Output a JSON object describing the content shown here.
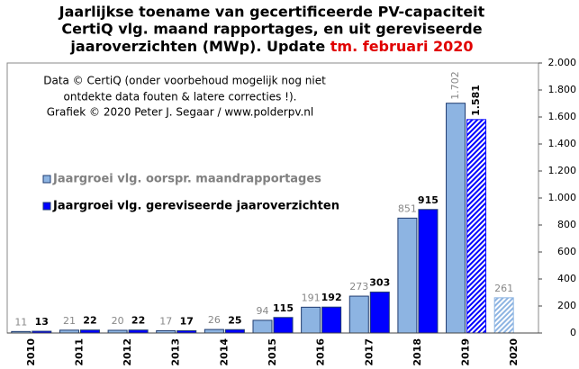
{
  "chart_data": {
    "type": "bar",
    "title": [
      "Jaarlijkse  toename van gecertificeerde PV-capaciteit",
      "CertiQ vlg. maand rapportages, en uit gereviseerde",
      "jaaroverzichten (MWp). Update"
    ],
    "title_highlight": "tm. februari 2020",
    "annotation": [
      "Data © CertiQ (onder voorbehoud mogelijk  nog niet",
      "ontdekte data fouten & latere correcties !).",
      "Grafiek  © 2020  Peter J. Segaar / www.polderpv.nl"
    ],
    "categories": [
      "2010",
      "2011",
      "2012",
      "2013",
      "2014",
      "2015",
      "2016",
      "2017",
      "2018",
      "2019",
      "2020"
    ],
    "series": [
      {
        "name": "Jaargroei vlg. oorspr. maandrapportages",
        "color": "#8db4e2",
        "values": [
          11,
          21,
          20,
          17,
          26,
          94,
          191,
          273,
          851,
          1702,
          261
        ],
        "value_labels": [
          "11",
          "21",
          "20",
          "17",
          "26",
          "94",
          "191",
          "273",
          "851",
          "1.702",
          "261"
        ],
        "hatched": [
          false,
          false,
          false,
          false,
          false,
          false,
          false,
          false,
          false,
          false,
          true
        ]
      },
      {
        "name": "Jaargroei vlg. gereviseerde jaaroverzichten",
        "color": "#0000ff",
        "values": [
          13,
          22,
          22,
          17,
          25,
          115,
          192,
          303,
          915,
          1581,
          null
        ],
        "value_labels": [
          "13",
          "22",
          "22",
          "17",
          "25",
          "115",
          "192",
          "303",
          "915",
          "1.581",
          null
        ],
        "hatched": [
          false,
          false,
          false,
          false,
          false,
          false,
          false,
          false,
          false,
          true,
          false
        ]
      }
    ],
    "ylim": [
      0,
      2000
    ],
    "yticks": [
      0,
      200,
      400,
      600,
      800,
      {
        "value": 1000,
        "label": "1.000"
      },
      {
        "value": 1200,
        "label": "1.200"
      },
      {
        "value": 1400,
        "label": "1.400"
      },
      {
        "value": 1600,
        "label": "1.600"
      },
      {
        "value": 1800,
        "label": "1.800"
      },
      {
        "value": 2000,
        "label": "2.000"
      }
    ],
    "y_axis_side": "right",
    "grid": false,
    "legend": "center-left"
  }
}
